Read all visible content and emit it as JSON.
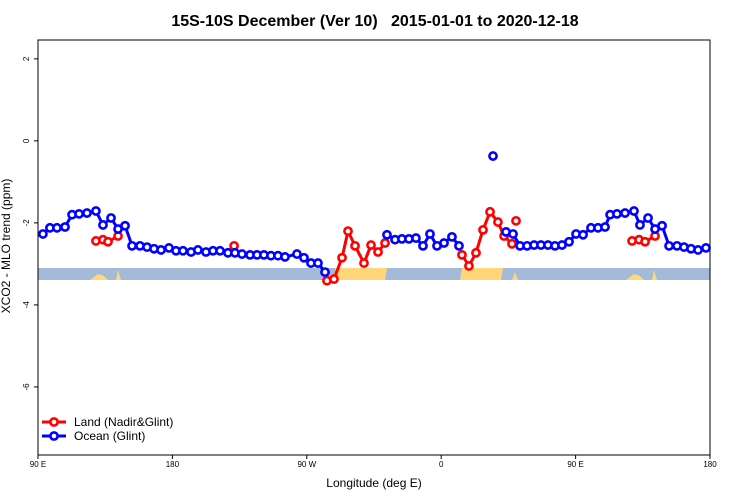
{
  "chart_data": {
    "type": "line",
    "title": "15S-10S December (Ver 10)   2015-01-01 to 2020-12-18",
    "x_label": "Longitude (deg E)",
    "y_label": "XCO2 - MLO trend (ppm)",
    "xlim": [
      90,
      540
    ],
    "ylim": [
      -7.66,
      2.46
    ],
    "xticks": [
      {
        "value": 90,
        "label": "90 E"
      },
      {
        "value": 180,
        "label": "180"
      },
      {
        "value": 270,
        "label": "90 W"
      },
      {
        "value": 360,
        "label": "0"
      },
      {
        "value": 450,
        "label": "90 E"
      },
      {
        "value": 540,
        "label": "180"
      }
    ],
    "yticks": [
      2,
      0,
      -2,
      -4,
      -6
    ],
    "legend": "bottom-left",
    "series": [
      {
        "name": "Land (Nadir&Glint)",
        "color": "#ff0000",
        "x": [
          128.8,
          133.5,
          136.9,
          143.6,
          182,
          221.3,
          250,
          283.5,
          288.2,
          293.6,
          297.6,
          302.3,
          308.3,
          313.0,
          317.7,
          322.4,
          350,
          373.9,
          378.6,
          383.3,
          388.0,
          392.7,
          398.0,
          402.1,
          407.4,
          408.5,
          410.1,
          450,
          487.8,
          492.5,
          496.5,
          503.2
        ],
        "values": [
          -2.44,
          -2.41,
          -2.46,
          -2.32,
          null,
          -2.56,
          null,
          -3.41,
          -3.37,
          -2.85,
          -2.2,
          -2.56,
          -2.98,
          -2.54,
          -2.71,
          -2.49,
          null,
          -2.78,
          -3.05,
          -2.73,
          -2.17,
          -1.73,
          -1.98,
          -2.32,
          -2.51,
          null,
          -1.95,
          null,
          -2.44,
          -2.41,
          -2.46,
          -2.32
        ]
      },
      {
        "name": "Ocean (Glint)",
        "color": "#0000ff",
        "x": [
          93.3,
          98.0,
          102.7,
          108.1,
          112.8,
          117.5,
          122.8,
          128.8,
          133.5,
          138.9,
          143.6,
          148.3,
          153.0,
          158.3,
          163.0,
          167.7,
          172.4,
          177.7,
          182.4,
          187.1,
          192.5,
          197.1,
          202.5,
          207.2,
          211.9,
          217.2,
          221.9,
          226.6,
          232.0,
          236.7,
          241.3,
          246.0,
          250.7,
          255.4,
          263.4,
          268.1,
          272.8,
          277.5,
          282.2,
          300,
          323.7,
          329.1,
          333.7,
          338.4,
          343.1,
          347.8,
          352.5,
          357.2,
          361.9,
          367.2,
          371.9,
          385,
          394.7,
          400,
          403.4,
          408.1,
          412.8,
          417.5,
          422.2,
          426.8,
          431.5,
          436.2,
          440.9,
          445.6,
          450.3,
          455.0,
          460.3,
          465.0,
          469.7,
          473.1,
          477.7,
          483.1,
          489.1,
          493.1,
          498.5,
          503.2,
          507.9,
          512.6,
          517.9,
          522.6,
          527.3,
          532.0,
          537.3
        ],
        "values": [
          -2.27,
          -2.12,
          -2.12,
          -2.1,
          -1.8,
          -1.78,
          -1.76,
          -1.71,
          -2.05,
          -1.88,
          -2.15,
          -2.07,
          -2.56,
          -2.56,
          -2.59,
          -2.63,
          -2.66,
          -2.61,
          -2.68,
          -2.68,
          -2.71,
          -2.66,
          -2.71,
          -2.68,
          -2.68,
          -2.73,
          -2.73,
          -2.76,
          -2.78,
          -2.78,
          -2.78,
          -2.8,
          -2.8,
          -2.83,
          -2.76,
          -2.85,
          -2.98,
          -2.98,
          -3.2,
          null,
          -2.29,
          -2.41,
          -2.39,
          -2.39,
          -2.37,
          -2.56,
          -2.27,
          -2.56,
          -2.49,
          -2.34,
          -2.56,
          null,
          -0.37,
          null,
          -2.22,
          -2.27,
          -2.56,
          -2.56,
          -2.54,
          -2.54,
          -2.54,
          -2.56,
          -2.54,
          -2.46,
          -2.27,
          -2.29,
          -2.12,
          -2.12,
          -2.1,
          -1.8,
          -1.78,
          -1.76,
          -1.71,
          -2.05,
          -1.88,
          -2.15,
          -2.07,
          -2.56,
          -2.56,
          -2.59,
          -2.63,
          -2.66,
          -2.61
        ]
      }
    ]
  }
}
